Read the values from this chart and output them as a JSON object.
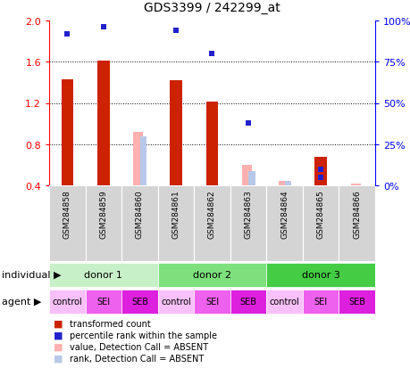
{
  "title": "GDS3399 / 242299_at",
  "samples": [
    "GSM284858",
    "GSM284859",
    "GSM284860",
    "GSM284861",
    "GSM284862",
    "GSM284863",
    "GSM284864",
    "GSM284865",
    "GSM284866"
  ],
  "transformed_count": [
    1.43,
    1.61,
    null,
    1.42,
    1.21,
    null,
    null,
    0.68,
    null
  ],
  "absent_value": [
    null,
    null,
    0.92,
    null,
    null,
    0.6,
    0.44,
    null,
    0.42
  ],
  "absent_rank": [
    null,
    null,
    0.88,
    null,
    null,
    0.54,
    0.44,
    null,
    null
  ],
  "percentile_rank": [
    92,
    96,
    null,
    94,
    80,
    null,
    null,
    10,
    null
  ],
  "absent_percentile_rank": [
    null,
    null,
    null,
    null,
    null,
    38,
    null,
    5,
    null
  ],
  "ylim_left": [
    0.4,
    2.0
  ],
  "ylim_right": [
    0,
    100
  ],
  "yticks_left": [
    0.4,
    0.8,
    1.2,
    1.6,
    2.0
  ],
  "yticks_right": [
    0,
    25,
    50,
    75,
    100
  ],
  "donors": [
    {
      "label": "donor 1",
      "start": 0,
      "end": 3,
      "color": "#c8f0c8"
    },
    {
      "label": "donor 2",
      "start": 3,
      "end": 6,
      "color": "#7de07d"
    },
    {
      "label": "donor 3",
      "start": 6,
      "end": 9,
      "color": "#44cc44"
    }
  ],
  "agents": [
    "control",
    "SEI",
    "SEB",
    "control",
    "SEI",
    "SEB",
    "control",
    "SEI",
    "SEB"
  ],
  "agent_colors": [
    "#f8c0f8",
    "#ee60ee",
    "#dd20dd",
    "#f8c0f8",
    "#ee60ee",
    "#dd20dd",
    "#f8c0f8",
    "#ee60ee",
    "#dd20dd"
  ],
  "bar_color_red": "#cc2200",
  "bar_color_pink": "#ffb0b0",
  "bar_color_lightblue": "#b8c8e8",
  "marker_color_blue": "#2222cc",
  "legend_items": [
    {
      "color": "#cc2200",
      "marker": "square",
      "label": "transformed count"
    },
    {
      "color": "#2222cc",
      "marker": "square",
      "label": "percentile rank within the sample"
    },
    {
      "color": "#ffb0b0",
      "marker": "square",
      "label": "value, Detection Call = ABSENT"
    },
    {
      "color": "#b8c8e8",
      "marker": "square",
      "label": "rank, Detection Call = ABSENT"
    }
  ]
}
